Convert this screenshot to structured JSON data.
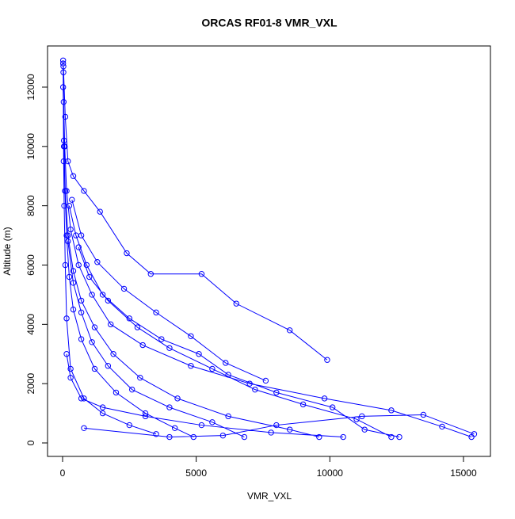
{
  "chart_data": {
    "type": "line",
    "title": "ORCAS RF01-8 VMR_VXL",
    "x_label": "VMR_VXL",
    "y_label": "Altitude (m)",
    "color": "#0000ff",
    "x": [
      15300,
      14200,
      12300,
      9800,
      7000,
      4800,
      3000,
      1800,
      1100,
      600,
      300,
      150,
      80,
      40,
      20,
      null,
      9600,
      8500,
      6200,
      4300,
      2900,
      1900,
      1200,
      700,
      400,
      200,
      100,
      50,
      20,
      null,
      4900,
      4200,
      3100,
      2000,
      1200,
      700,
      400,
      250,
      150,
      90,
      50,
      30,
      null,
      9900,
      8500,
      6500,
      5200,
      3300,
      2400,
      1400,
      800,
      400,
      200,
      100,
      30,
      null,
      12600,
      11300,
      10100,
      8000,
      6200,
      5100,
      3700,
      2500,
      1500,
      900,
      500,
      250,
      null,
      10500,
      7800,
      5200,
      3100,
      1500,
      700,
      300,
      150,
      null,
      6800,
      5600,
      4000,
      2600,
      1700,
      1100,
      700,
      400,
      200,
      null,
      12300,
      11000,
      9000,
      7200,
      5600,
      4000,
      2800,
      1700,
      1000,
      600,
      null,
      800,
      4000,
      6000,
      8000,
      11200,
      13500,
      15400,
      null,
      3500,
      2500,
      1500,
      800,
      300,
      150,
      100,
      60,
      40,
      20,
      null,
      7600,
      6100,
      4800,
      3500,
      2300,
      1300,
      700,
      350
    ],
    "values": [
      200,
      550,
      1100,
      1500,
      2000,
      2600,
      3300,
      4000,
      5000,
      6000,
      7200,
      8500,
      10000,
      11500,
      12800,
      null,
      200,
      450,
      900,
      1500,
      2200,
      3000,
      3900,
      4800,
      5800,
      7000,
      8500,
      10200,
      12000,
      null,
      200,
      500,
      1000,
      1700,
      2500,
      3500,
      4500,
      5600,
      7000,
      8500,
      10000,
      12500,
      null,
      2800,
      3800,
      4700,
      5700,
      5700,
      6400,
      7800,
      8500,
      9000,
      9500,
      11000,
      12700,
      null,
      200,
      450,
      1200,
      1700,
      2300,
      3000,
      3500,
      4200,
      5000,
      6000,
      7000,
      8000,
      null,
      200,
      350,
      600,
      900,
      1200,
      1500,
      2200,
      3000,
      null,
      200,
      700,
      1200,
      1800,
      2600,
      3400,
      4400,
      5400,
      6800,
      null,
      200,
      800,
      1300,
      1800,
      2500,
      3200,
      3900,
      4800,
      5600,
      6600,
      null,
      500,
      200,
      250,
      600,
      900,
      950,
      300,
      null,
      300,
      600,
      1000,
      1500,
      2500,
      4200,
      6000,
      8000,
      9500,
      12900,
      null,
      2100,
      2700,
      3600,
      4400,
      5200,
      6100,
      7000,
      8200
    ],
    "xlim": [
      -563,
      16009
    ],
    "ylim": [
      -454,
      13389
    ],
    "xticks": [
      0,
      5000,
      10000,
      15000
    ],
    "yticks": [
      0,
      2000,
      4000,
      6000,
      8000,
      10000,
      12000
    ]
  }
}
